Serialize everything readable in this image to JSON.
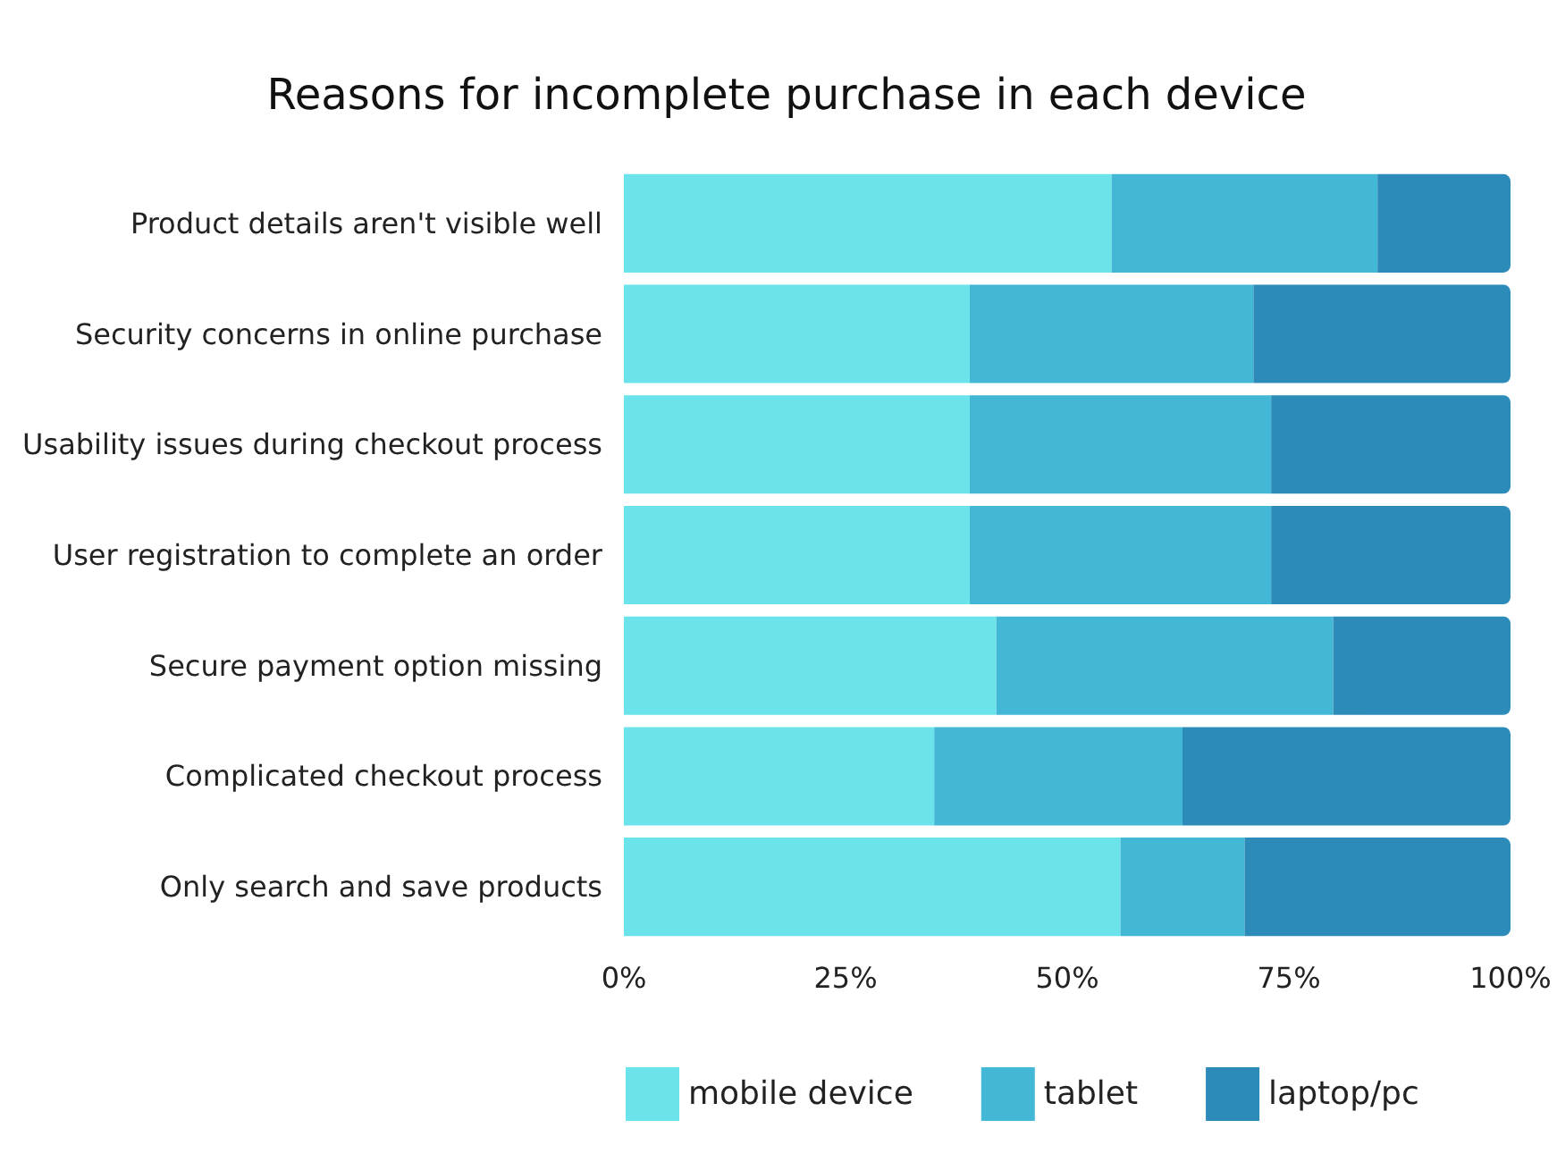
{
  "chart_data": {
    "type": "bar",
    "title": "Reasons for incomplete purchase in each device",
    "orientation": "horizontal",
    "stacked": true,
    "categories": [
      "Product details aren't visible well",
      "Security concerns in online purchase",
      "Usability issues during checkout process",
      "User registration to complete an order",
      "Secure payment option missing",
      "Complicated checkout process",
      "Only search and save products"
    ],
    "series": [
      {
        "name": "mobile device",
        "color": "#6ae4ea",
        "values": [
          55,
          39,
          39,
          39,
          42,
          35,
          56
        ]
      },
      {
        "name": "tablet",
        "color": "#43b8d6",
        "values": [
          30,
          32,
          34,
          34,
          38,
          28,
          14
        ]
      },
      {
        "name": "laptop/pc",
        "color": "#2d8bba",
        "values": [
          15,
          29,
          27,
          27,
          20,
          37,
          30
        ]
      }
    ],
    "xlim": [
      0,
      100
    ],
    "xticks": [
      {
        "value": 0,
        "label": "0%"
      },
      {
        "value": 25,
        "label": "25%"
      },
      {
        "value": 50,
        "label": "50%"
      },
      {
        "value": 75,
        "label": "75%"
      },
      {
        "value": 100,
        "label": "100%"
      }
    ],
    "grid": false,
    "legend": "bottom"
  }
}
